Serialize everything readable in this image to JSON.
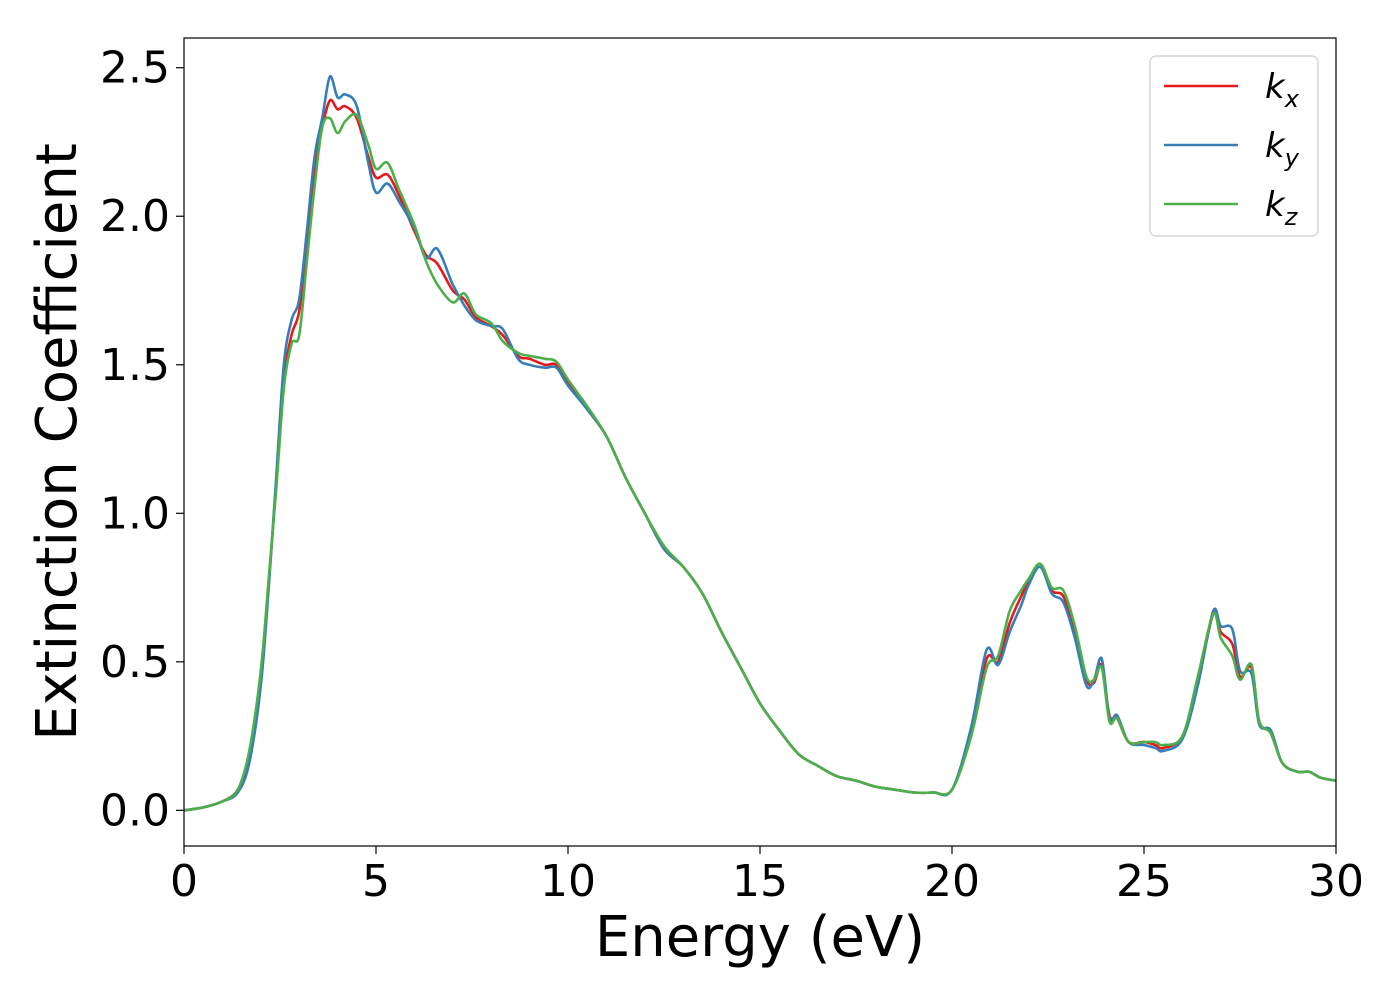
{
  "chart_data": {
    "type": "line",
    "title": "",
    "xlabel": "Energy (eV)",
    "ylabel": "Extinction Coefficient",
    "xlim": [
      0,
      30
    ],
    "ylim": [
      -0.12,
      2.6
    ],
    "xticks": [
      0,
      5,
      10,
      15,
      20,
      25,
      30
    ],
    "xtick_labels": [
      "0",
      "5",
      "10",
      "15",
      "20",
      "25",
      "30"
    ],
    "yticks": [
      0.0,
      0.5,
      1.0,
      1.5,
      2.0,
      2.5
    ],
    "ytick_labels": [
      "0.0",
      "0.5",
      "1.0",
      "1.5",
      "2.0",
      "2.5"
    ],
    "grid": false,
    "legend_position": "top-right",
    "series": [
      {
        "name": "kx",
        "legend_base": "k",
        "legend_sub": "x",
        "color": "#e41a1c",
        "points": [
          [
            0,
            0
          ],
          [
            0.5,
            0.01
          ],
          [
            1.0,
            0.03
          ],
          [
            1.4,
            0.07
          ],
          [
            1.7,
            0.18
          ],
          [
            2.0,
            0.45
          ],
          [
            2.2,
            0.75
          ],
          [
            2.4,
            1.1
          ],
          [
            2.6,
            1.45
          ],
          [
            2.8,
            1.6
          ],
          [
            3.0,
            1.68
          ],
          [
            3.2,
            1.9
          ],
          [
            3.4,
            2.15
          ],
          [
            3.6,
            2.3
          ],
          [
            3.8,
            2.39
          ],
          [
            4.0,
            2.36
          ],
          [
            4.2,
            2.37
          ],
          [
            4.5,
            2.33
          ],
          [
            4.8,
            2.2
          ],
          [
            5.0,
            2.13
          ],
          [
            5.3,
            2.14
          ],
          [
            5.6,
            2.07
          ],
          [
            6.0,
            1.95
          ],
          [
            6.3,
            1.87
          ],
          [
            6.6,
            1.84
          ],
          [
            7.0,
            1.75
          ],
          [
            7.3,
            1.72
          ],
          [
            7.6,
            1.66
          ],
          [
            8.0,
            1.63
          ],
          [
            8.3,
            1.6
          ],
          [
            8.7,
            1.53
          ],
          [
            9.0,
            1.52
          ],
          [
            9.4,
            1.5
          ],
          [
            9.7,
            1.5
          ],
          [
            10.0,
            1.44
          ],
          [
            10.5,
            1.35
          ],
          [
            11.0,
            1.26
          ],
          [
            11.5,
            1.12
          ],
          [
            12.0,
            1.0
          ],
          [
            12.5,
            0.88
          ],
          [
            13.0,
            0.82
          ],
          [
            13.5,
            0.73
          ],
          [
            14.0,
            0.6
          ],
          [
            14.5,
            0.48
          ],
          [
            15.0,
            0.36
          ],
          [
            15.5,
            0.27
          ],
          [
            16.0,
            0.19
          ],
          [
            16.5,
            0.15
          ],
          [
            17.0,
            0.115
          ],
          [
            17.5,
            0.1
          ],
          [
            18.0,
            0.08
          ],
          [
            18.5,
            0.07
          ],
          [
            19.0,
            0.06
          ],
          [
            19.5,
            0.06
          ],
          [
            20.0,
            0.07
          ],
          [
            20.5,
            0.26
          ],
          [
            20.9,
            0.51
          ],
          [
            21.2,
            0.5
          ],
          [
            21.5,
            0.63
          ],
          [
            21.8,
            0.72
          ],
          [
            22.0,
            0.77
          ],
          [
            22.3,
            0.82
          ],
          [
            22.6,
            0.74
          ],
          [
            22.9,
            0.72
          ],
          [
            23.2,
            0.6
          ],
          [
            23.5,
            0.44
          ],
          [
            23.7,
            0.43
          ],
          [
            23.9,
            0.49
          ],
          [
            24.1,
            0.32
          ],
          [
            24.3,
            0.31
          ],
          [
            24.6,
            0.23
          ],
          [
            25.0,
            0.23
          ],
          [
            25.3,
            0.22
          ],
          [
            25.5,
            0.21
          ],
          [
            26.0,
            0.25
          ],
          [
            26.4,
            0.43
          ],
          [
            26.8,
            0.66
          ],
          [
            27.0,
            0.6
          ],
          [
            27.3,
            0.56
          ],
          [
            27.5,
            0.45
          ],
          [
            27.8,
            0.48
          ],
          [
            28.0,
            0.3
          ],
          [
            28.3,
            0.26
          ],
          [
            28.6,
            0.16
          ],
          [
            29.0,
            0.13
          ],
          [
            29.3,
            0.13
          ],
          [
            29.6,
            0.11
          ],
          [
            30.0,
            0.1
          ]
        ]
      },
      {
        "name": "ky",
        "legend_base": "k",
        "legend_sub": "y",
        "color": "#377eb8",
        "points": [
          [
            0,
            0
          ],
          [
            0.5,
            0.01
          ],
          [
            1.0,
            0.03
          ],
          [
            1.4,
            0.06
          ],
          [
            1.7,
            0.16
          ],
          [
            2.0,
            0.42
          ],
          [
            2.2,
            0.74
          ],
          [
            2.4,
            1.12
          ],
          [
            2.6,
            1.5
          ],
          [
            2.8,
            1.65
          ],
          [
            3.0,
            1.72
          ],
          [
            3.2,
            1.95
          ],
          [
            3.4,
            2.2
          ],
          [
            3.6,
            2.33
          ],
          [
            3.8,
            2.47
          ],
          [
            4.0,
            2.4
          ],
          [
            4.2,
            2.41
          ],
          [
            4.5,
            2.37
          ],
          [
            4.8,
            2.18
          ],
          [
            5.0,
            2.08
          ],
          [
            5.3,
            2.11
          ],
          [
            5.6,
            2.05
          ],
          [
            6.0,
            1.96
          ],
          [
            6.3,
            1.86
          ],
          [
            6.6,
            1.89
          ],
          [
            7.0,
            1.77
          ],
          [
            7.3,
            1.7
          ],
          [
            7.6,
            1.65
          ],
          [
            8.0,
            1.63
          ],
          [
            8.3,
            1.62
          ],
          [
            8.7,
            1.52
          ],
          [
            9.0,
            1.5
          ],
          [
            9.4,
            1.49
          ],
          [
            9.7,
            1.49
          ],
          [
            10.0,
            1.43
          ],
          [
            10.5,
            1.35
          ],
          [
            11.0,
            1.26
          ],
          [
            11.5,
            1.12
          ],
          [
            12.0,
            1.0
          ],
          [
            12.5,
            0.88
          ],
          [
            13.0,
            0.82
          ],
          [
            13.5,
            0.73
          ],
          [
            14.0,
            0.6
          ],
          [
            14.5,
            0.48
          ],
          [
            15.0,
            0.36
          ],
          [
            15.5,
            0.27
          ],
          [
            16.0,
            0.19
          ],
          [
            16.5,
            0.15
          ],
          [
            17.0,
            0.115
          ],
          [
            17.5,
            0.1
          ],
          [
            18.0,
            0.08
          ],
          [
            18.5,
            0.07
          ],
          [
            19.0,
            0.06
          ],
          [
            19.5,
            0.06
          ],
          [
            20.0,
            0.07
          ],
          [
            20.5,
            0.28
          ],
          [
            20.9,
            0.54
          ],
          [
            21.2,
            0.49
          ],
          [
            21.5,
            0.6
          ],
          [
            21.8,
            0.69
          ],
          [
            22.0,
            0.76
          ],
          [
            22.3,
            0.82
          ],
          [
            22.6,
            0.73
          ],
          [
            22.9,
            0.7
          ],
          [
            23.2,
            0.58
          ],
          [
            23.5,
            0.42
          ],
          [
            23.7,
            0.44
          ],
          [
            23.9,
            0.51
          ],
          [
            24.1,
            0.31
          ],
          [
            24.3,
            0.32
          ],
          [
            24.6,
            0.23
          ],
          [
            25.0,
            0.22
          ],
          [
            25.3,
            0.21
          ],
          [
            25.5,
            0.2
          ],
          [
            26.0,
            0.24
          ],
          [
            26.4,
            0.42
          ],
          [
            26.8,
            0.67
          ],
          [
            27.0,
            0.62
          ],
          [
            27.3,
            0.61
          ],
          [
            27.5,
            0.47
          ],
          [
            27.8,
            0.46
          ],
          [
            28.0,
            0.29
          ],
          [
            28.3,
            0.27
          ],
          [
            28.6,
            0.16
          ],
          [
            29.0,
            0.13
          ],
          [
            29.3,
            0.13
          ],
          [
            29.6,
            0.11
          ],
          [
            30.0,
            0.1
          ]
        ]
      },
      {
        "name": "kz",
        "legend_base": "k",
        "legend_sub": "z",
        "color": "#4daf4a",
        "points": [
          [
            0,
            0
          ],
          [
            0.5,
            0.01
          ],
          [
            1.0,
            0.03
          ],
          [
            1.4,
            0.07
          ],
          [
            1.7,
            0.2
          ],
          [
            2.0,
            0.47
          ],
          [
            2.2,
            0.77
          ],
          [
            2.4,
            1.08
          ],
          [
            2.6,
            1.42
          ],
          [
            2.8,
            1.57
          ],
          [
            3.0,
            1.6
          ],
          [
            3.2,
            1.85
          ],
          [
            3.4,
            2.1
          ],
          [
            3.6,
            2.3
          ],
          [
            3.8,
            2.33
          ],
          [
            4.0,
            2.28
          ],
          [
            4.2,
            2.32
          ],
          [
            4.5,
            2.34
          ],
          [
            4.8,
            2.24
          ],
          [
            5.0,
            2.16
          ],
          [
            5.3,
            2.18
          ],
          [
            5.6,
            2.09
          ],
          [
            6.0,
            1.97
          ],
          [
            6.3,
            1.85
          ],
          [
            6.6,
            1.77
          ],
          [
            7.0,
            1.71
          ],
          [
            7.3,
            1.74
          ],
          [
            7.6,
            1.67
          ],
          [
            8.0,
            1.64
          ],
          [
            8.3,
            1.58
          ],
          [
            8.7,
            1.54
          ],
          [
            9.0,
            1.53
          ],
          [
            9.4,
            1.52
          ],
          [
            9.7,
            1.51
          ],
          [
            10.0,
            1.45
          ],
          [
            10.5,
            1.36
          ],
          [
            11.0,
            1.26
          ],
          [
            11.5,
            1.12
          ],
          [
            12.0,
            1.0
          ],
          [
            12.5,
            0.89
          ],
          [
            13.0,
            0.82
          ],
          [
            13.5,
            0.73
          ],
          [
            14.0,
            0.6
          ],
          [
            14.5,
            0.48
          ],
          [
            15.0,
            0.36
          ],
          [
            15.5,
            0.27
          ],
          [
            16.0,
            0.19
          ],
          [
            16.5,
            0.15
          ],
          [
            17.0,
            0.115
          ],
          [
            17.5,
            0.1
          ],
          [
            18.0,
            0.08
          ],
          [
            18.5,
            0.07
          ],
          [
            19.0,
            0.06
          ],
          [
            19.5,
            0.06
          ],
          [
            20.0,
            0.07
          ],
          [
            20.5,
            0.25
          ],
          [
            20.9,
            0.48
          ],
          [
            21.2,
            0.52
          ],
          [
            21.5,
            0.67
          ],
          [
            21.8,
            0.74
          ],
          [
            22.0,
            0.78
          ],
          [
            22.3,
            0.83
          ],
          [
            22.6,
            0.75
          ],
          [
            22.9,
            0.74
          ],
          [
            23.2,
            0.62
          ],
          [
            23.5,
            0.45
          ],
          [
            23.7,
            0.44
          ],
          [
            23.9,
            0.48
          ],
          [
            24.1,
            0.3
          ],
          [
            24.3,
            0.31
          ],
          [
            24.6,
            0.23
          ],
          [
            25.0,
            0.23
          ],
          [
            25.3,
            0.23
          ],
          [
            25.5,
            0.22
          ],
          [
            26.0,
            0.25
          ],
          [
            26.4,
            0.45
          ],
          [
            26.8,
            0.66
          ],
          [
            27.0,
            0.58
          ],
          [
            27.3,
            0.52
          ],
          [
            27.5,
            0.44
          ],
          [
            27.8,
            0.49
          ],
          [
            28.0,
            0.3
          ],
          [
            28.3,
            0.26
          ],
          [
            28.6,
            0.16
          ],
          [
            29.0,
            0.13
          ],
          [
            29.3,
            0.13
          ],
          [
            29.6,
            0.11
          ],
          [
            30.0,
            0.1
          ]
        ]
      }
    ]
  }
}
